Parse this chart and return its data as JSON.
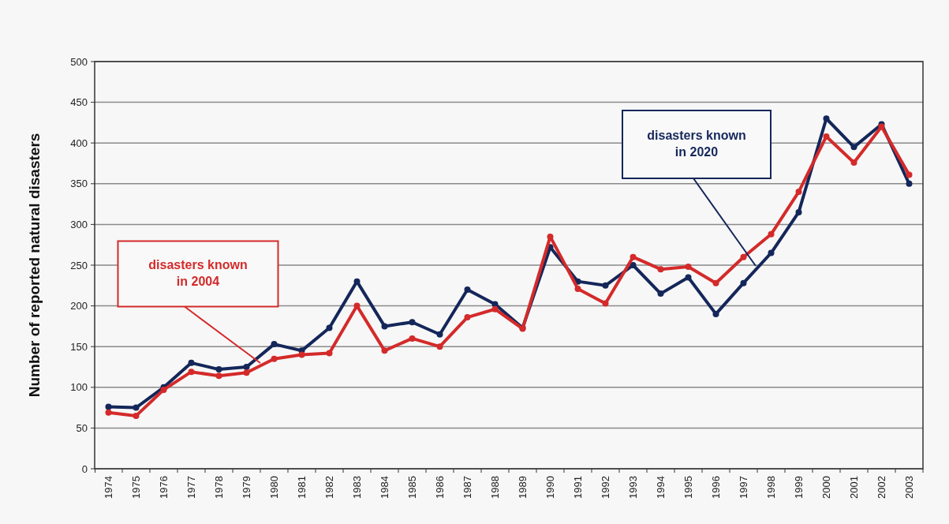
{
  "chart_data": {
    "type": "line",
    "ylabel": "Number of reported natural disasters",
    "categories": [
      "1974",
      "1975",
      "1976",
      "1977",
      "1978",
      "1979",
      "1980",
      "1981",
      "1982",
      "1983",
      "1984",
      "1985",
      "1986",
      "1987",
      "1988",
      "1989",
      "1990",
      "1991",
      "1992",
      "1993",
      "1994",
      "1995",
      "1996",
      "1997",
      "1998",
      "1999",
      "2000",
      "2001",
      "2002",
      "2003"
    ],
    "series": [
      {
        "color": "#14275a",
        "values": [
          76,
          75,
          100,
          130,
          122,
          125,
          153,
          145,
          173,
          230,
          175,
          180,
          165,
          220,
          202,
          173,
          272,
          230,
          225,
          250,
          215,
          235,
          190,
          228,
          265,
          315,
          430,
          395,
          423,
          350
        ]
      },
      {
        "color": "#d42a2a",
        "values": [
          69,
          65,
          97,
          119,
          114,
          118,
          135,
          140,
          142,
          200,
          145,
          160,
          150,
          186,
          196,
          172,
          285,
          221,
          203,
          260,
          245,
          248,
          228,
          260,
          288,
          340,
          408,
          376,
          420,
          361
        ]
      }
    ],
    "annotations": [
      "disasters known in 2020",
      "disasters known in 2004"
    ],
    "ylim": [
      0,
      500
    ],
    "yticks": [
      0,
      50,
      100,
      150,
      200,
      250,
      300,
      350,
      400,
      450,
      500
    ],
    "grid": "y",
    "marker": "circle",
    "line_style": "solid"
  }
}
